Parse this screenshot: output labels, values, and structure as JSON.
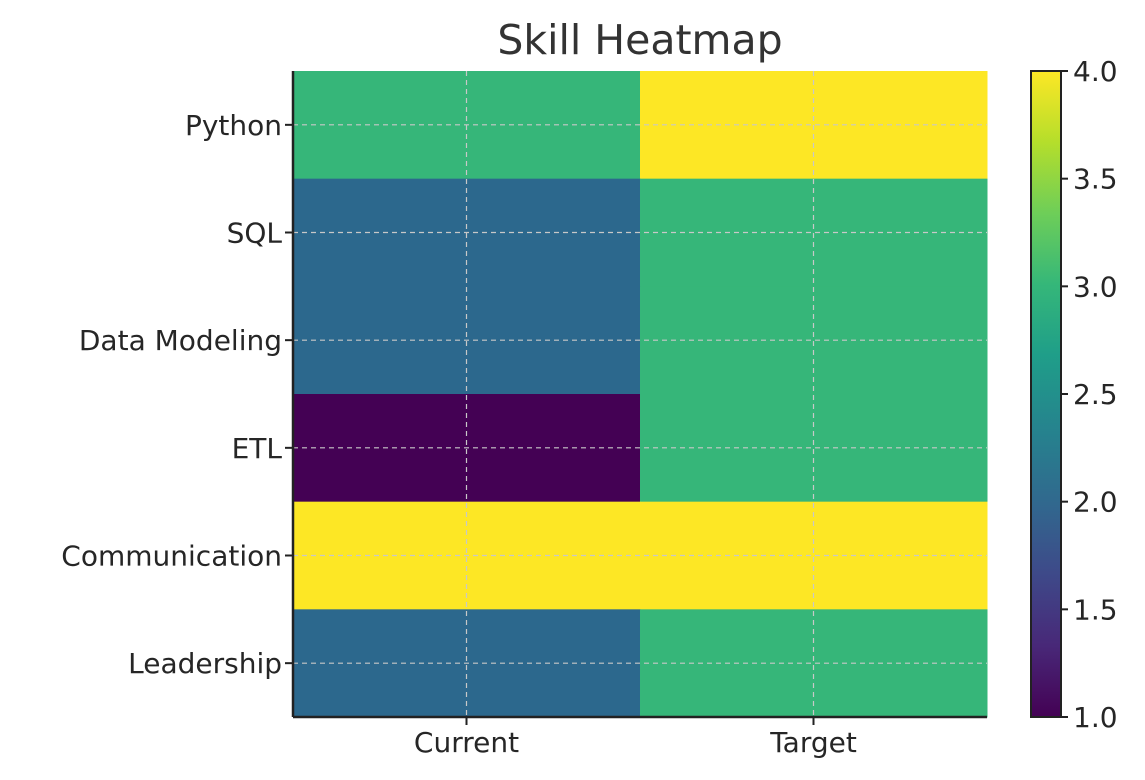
{
  "chart_data": {
    "type": "heatmap",
    "title": "Skill Heatmap",
    "xlabel": "",
    "ylabel": "",
    "x_categories": [
      "Current",
      "Target"
    ],
    "y_categories": [
      "Python",
      "SQL",
      "Data Modeling",
      "ETL",
      "Communication",
      "Leadership"
    ],
    "values": [
      [
        3,
        4
      ],
      [
        2,
        3
      ],
      [
        2,
        3
      ],
      [
        1,
        3
      ],
      [
        4,
        4
      ],
      [
        2,
        3
      ]
    ],
    "colormap": "viridis",
    "colorbar": {
      "range": [
        1.0,
        4.0
      ],
      "ticks": [
        "1.0",
        "1.5",
        "2.0",
        "2.5",
        "3.0",
        "3.5",
        "4.0"
      ]
    },
    "grid": true,
    "colors": {
      "1": "#440154",
      "2": "#2c688d",
      "3": "#36b679",
      "4": "#fde725"
    }
  }
}
